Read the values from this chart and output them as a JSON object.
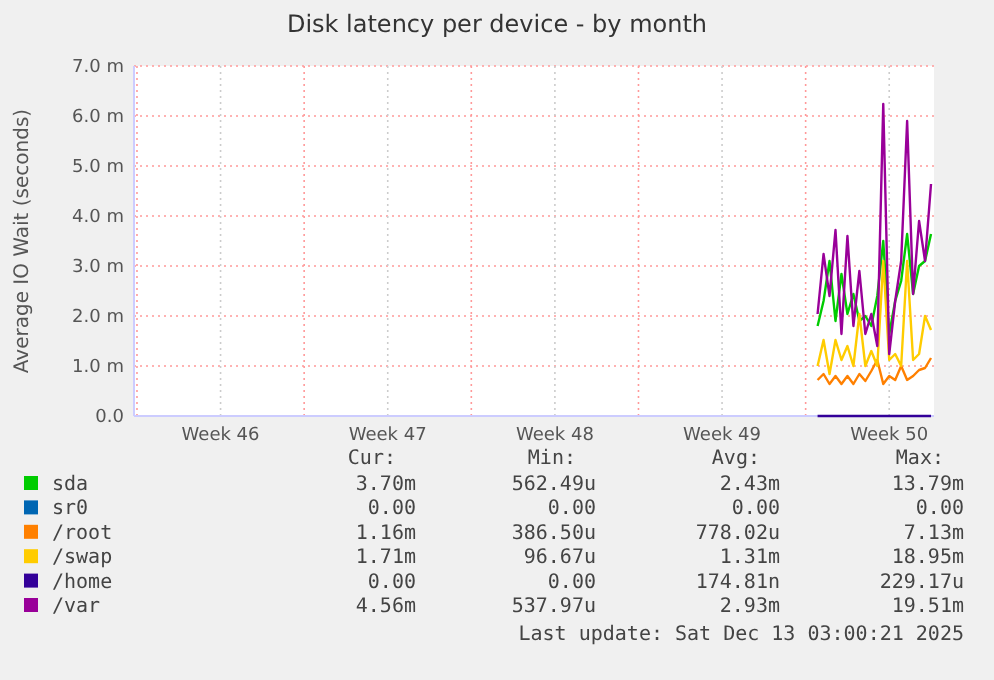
{
  "chart_data": {
    "type": "line",
    "title": "Disk latency per device - by month",
    "ylabel": "Average IO Wait (seconds)",
    "categories": [
      null,
      null,
      null,
      null,
      null,
      null,
      null,
      null,
      null,
      null,
      null,
      null,
      null,
      null,
      "Week 46",
      null,
      null,
      null,
      null,
      null,
      null,
      null,
      null,
      null,
      null,
      null,
      null,
      null,
      null,
      null,
      null,
      null,
      null,
      null,
      null,
      null,
      null,
      null,
      null,
      null,
      null,
      null,
      "Week 47",
      null,
      null,
      null,
      null,
      null,
      null,
      null,
      null,
      null,
      null,
      null,
      null,
      null,
      null,
      null,
      null,
      null,
      null,
      null,
      null,
      null,
      null,
      null,
      null,
      null,
      null,
      null,
      "Week 48",
      null,
      null,
      null,
      null,
      null,
      null,
      null,
      null,
      null,
      null,
      null,
      null,
      null,
      null,
      null,
      null,
      null,
      null,
      null,
      null,
      null,
      null,
      null,
      null,
      null,
      null,
      null,
      "Week 49",
      null,
      null,
      null,
      null,
      null,
      null,
      null,
      null,
      null,
      null,
      null,
      null,
      null,
      null,
      null,
      null,
      null,
      null,
      null,
      null,
      null,
      null,
      null,
      null,
      null,
      null,
      null,
      "Week 50",
      null,
      null,
      null,
      null,
      null,
      null,
      null
    ],
    "ylim": [
      0,
      7
    ],
    "yticks": [
      {
        "value": 0,
        "label": "0.0"
      },
      {
        "value": 1,
        "label": "1.0 m"
      },
      {
        "value": 2,
        "label": "2.0 m"
      },
      {
        "value": 3,
        "label": "3.0 m"
      },
      {
        "value": 4,
        "label": "4.0 m"
      },
      {
        "value": 5,
        "label": "5.0 m"
      },
      {
        "value": 6,
        "label": "6.0 m"
      },
      {
        "value": 7,
        "label": "7.0 m"
      }
    ],
    "grid": true,
    "legend": "bottom",
    "series": [
      {
        "name": "sda",
        "color": "#00cc00",
        "values": [
          null,
          null,
          null,
          null,
          null,
          null,
          null,
          null,
          null,
          null,
          null,
          null,
          null,
          null,
          null,
          null,
          null,
          null,
          null,
          null,
          null,
          null,
          null,
          null,
          null,
          null,
          null,
          null,
          null,
          null,
          null,
          null,
          null,
          null,
          null,
          null,
          null,
          null,
          null,
          null,
          null,
          null,
          null,
          null,
          null,
          null,
          null,
          null,
          null,
          null,
          null,
          null,
          null,
          null,
          null,
          null,
          null,
          null,
          null,
          null,
          null,
          null,
          null,
          null,
          null,
          null,
          null,
          null,
          null,
          null,
          null,
          null,
          null,
          null,
          null,
          null,
          null,
          null,
          null,
          null,
          null,
          null,
          null,
          null,
          null,
          null,
          null,
          null,
          null,
          null,
          null,
          null,
          null,
          null,
          null,
          null,
          null,
          null,
          null,
          null,
          null,
          null,
          null,
          null,
          null,
          null,
          null,
          null,
          null,
          null,
          null,
          null,
          null,
          null,
          1.8,
          2.3,
          3.1,
          1.9,
          2.84,
          2.04,
          2.44,
          1.9,
          2.0,
          1.8,
          2.4,
          3.5,
          1.64,
          2.3,
          2.7,
          3.64,
          2.44,
          3.0,
          3.1,
          3.64
        ]
      },
      {
        "name": "sr0",
        "color": "#0066b3",
        "values": [
          null,
          null,
          null,
          null,
          null,
          null,
          null,
          null,
          null,
          null,
          null,
          null,
          null,
          null,
          null,
          null,
          null,
          null,
          null,
          null,
          null,
          null,
          null,
          null,
          null,
          null,
          null,
          null,
          null,
          null,
          null,
          null,
          null,
          null,
          null,
          null,
          null,
          null,
          null,
          null,
          null,
          null,
          null,
          null,
          null,
          null,
          null,
          null,
          null,
          null,
          null,
          null,
          null,
          null,
          null,
          null,
          null,
          null,
          null,
          null,
          null,
          null,
          null,
          null,
          null,
          null,
          null,
          null,
          null,
          null,
          null,
          null,
          null,
          null,
          null,
          null,
          null,
          null,
          null,
          null,
          null,
          null,
          null,
          null,
          null,
          null,
          null,
          null,
          null,
          null,
          null,
          null,
          null,
          null,
          null,
          null,
          null,
          null,
          null,
          null,
          null,
          null,
          null,
          null,
          null,
          null,
          null,
          null,
          null,
          null,
          null,
          null,
          null,
          null,
          null,
          null,
          null,
          null,
          null,
          null,
          null,
          null,
          null,
          null,
          null,
          null,
          null,
          null,
          null,
          null,
          null,
          null,
          null,
          null
        ]
      },
      {
        "name": "/root",
        "color": "#ff8000",
        "values": [
          null,
          null,
          null,
          null,
          null,
          null,
          null,
          null,
          null,
          null,
          null,
          null,
          null,
          null,
          null,
          null,
          null,
          null,
          null,
          null,
          null,
          null,
          null,
          null,
          null,
          null,
          null,
          null,
          null,
          null,
          null,
          null,
          null,
          null,
          null,
          null,
          null,
          null,
          null,
          null,
          null,
          null,
          null,
          null,
          null,
          null,
          null,
          null,
          null,
          null,
          null,
          null,
          null,
          null,
          null,
          null,
          null,
          null,
          null,
          null,
          null,
          null,
          null,
          null,
          null,
          null,
          null,
          null,
          null,
          null,
          null,
          null,
          null,
          null,
          null,
          null,
          null,
          null,
          null,
          null,
          null,
          null,
          null,
          null,
          null,
          null,
          null,
          null,
          null,
          null,
          null,
          null,
          null,
          null,
          null,
          null,
          null,
          null,
          null,
          null,
          null,
          null,
          null,
          null,
          null,
          null,
          null,
          null,
          null,
          null,
          null,
          null,
          null,
          null,
          0.72,
          0.84,
          0.64,
          0.8,
          0.64,
          0.8,
          0.64,
          0.84,
          0.7,
          0.9,
          1.12,
          0.64,
          0.8,
          0.72,
          1.0,
          0.72,
          0.8,
          0.92,
          0.96,
          1.16
        ]
      },
      {
        "name": "/swap",
        "color": "#ffcc00",
        "values": [
          null,
          null,
          null,
          null,
          null,
          null,
          null,
          null,
          null,
          null,
          null,
          null,
          null,
          null,
          null,
          null,
          null,
          null,
          null,
          null,
          null,
          null,
          null,
          null,
          null,
          null,
          null,
          null,
          null,
          null,
          null,
          null,
          null,
          null,
          null,
          null,
          null,
          null,
          null,
          null,
          null,
          null,
          null,
          null,
          null,
          null,
          null,
          null,
          null,
          null,
          null,
          null,
          null,
          null,
          null,
          null,
          null,
          null,
          null,
          null,
          null,
          null,
          null,
          null,
          null,
          null,
          null,
          null,
          null,
          null,
          null,
          null,
          null,
          null,
          null,
          null,
          null,
          null,
          null,
          null,
          null,
          null,
          null,
          null,
          null,
          null,
          null,
          null,
          null,
          null,
          null,
          null,
          null,
          null,
          null,
          null,
          null,
          null,
          null,
          null,
          null,
          null,
          null,
          null,
          null,
          null,
          null,
          null,
          null,
          null,
          null,
          null,
          null,
          null,
          1.0,
          1.52,
          0.84,
          1.52,
          1.12,
          1.4,
          1.0,
          2.04,
          1.0,
          1.3,
          1.0,
          3.1,
          1.12,
          1.24,
          1.0,
          3.1,
          1.12,
          1.24,
          2.0,
          1.72
        ]
      },
      {
        "name": "/home",
        "color": "#330099",
        "values": [
          null,
          null,
          null,
          null,
          null,
          null,
          null,
          null,
          null,
          null,
          null,
          null,
          null,
          null,
          null,
          null,
          null,
          null,
          null,
          null,
          null,
          null,
          null,
          null,
          null,
          null,
          null,
          null,
          null,
          null,
          null,
          null,
          null,
          null,
          null,
          null,
          null,
          null,
          null,
          null,
          null,
          null,
          null,
          null,
          null,
          null,
          null,
          null,
          null,
          null,
          null,
          null,
          null,
          null,
          null,
          null,
          null,
          null,
          null,
          null,
          null,
          null,
          null,
          null,
          null,
          null,
          null,
          null,
          null,
          null,
          null,
          null,
          null,
          null,
          null,
          null,
          null,
          null,
          null,
          null,
          null,
          null,
          null,
          null,
          null,
          null,
          null,
          null,
          null,
          null,
          null,
          null,
          null,
          null,
          null,
          null,
          null,
          null,
          null,
          null,
          null,
          null,
          null,
          null,
          null,
          null,
          null,
          null,
          null,
          null,
          null,
          null,
          null,
          null,
          0,
          0,
          0,
          0,
          0,
          0,
          0,
          0,
          0,
          0,
          0,
          0,
          0,
          0,
          0,
          0,
          0,
          0,
          0,
          0
        ]
      },
      {
        "name": "/var",
        "color": "#990099",
        "values": [
          null,
          null,
          null,
          null,
          null,
          null,
          null,
          null,
          null,
          null,
          null,
          null,
          null,
          null,
          null,
          null,
          null,
          null,
          null,
          null,
          null,
          null,
          null,
          null,
          null,
          null,
          null,
          null,
          null,
          null,
          null,
          null,
          null,
          null,
          null,
          null,
          null,
          null,
          null,
          null,
          null,
          null,
          null,
          null,
          null,
          null,
          null,
          null,
          null,
          null,
          null,
          null,
          null,
          null,
          null,
          null,
          null,
          null,
          null,
          null,
          null,
          null,
          null,
          null,
          null,
          null,
          null,
          null,
          null,
          null,
          null,
          null,
          null,
          null,
          null,
          null,
          null,
          null,
          null,
          null,
          null,
          null,
          null,
          null,
          null,
          null,
          null,
          null,
          null,
          null,
          null,
          null,
          null,
          null,
          null,
          null,
          null,
          null,
          null,
          null,
          null,
          null,
          null,
          null,
          null,
          null,
          null,
          null,
          null,
          null,
          null,
          null,
          null,
          null,
          2.04,
          3.24,
          2.4,
          3.72,
          1.64,
          3.6,
          1.8,
          2.9,
          1.64,
          2.04,
          1.4,
          6.24,
          1.24,
          2.3,
          3.1,
          5.9,
          2.44,
          3.9,
          3.1,
          4.64
        ]
      }
    ],
    "annotations": [
      "Cur:",
      "Min:",
      "Avg:",
      "Max:",
      "3.70m",
      "562.49u",
      "2.43m",
      "13.79m",
      "0.00",
      "0.00",
      "0.00",
      "0.00",
      "1.16m",
      "386.50u",
      "778.02u",
      "7.13m",
      "1.71m",
      "96.67u",
      "1.31m",
      "18.95m",
      "0.00",
      "0.00",
      "174.81n",
      "229.17u",
      "4.56m",
      "537.97u",
      "2.93m",
      "19.51m",
      "Last update: Sat Dec 13 03:00:21 2025"
    ]
  }
}
